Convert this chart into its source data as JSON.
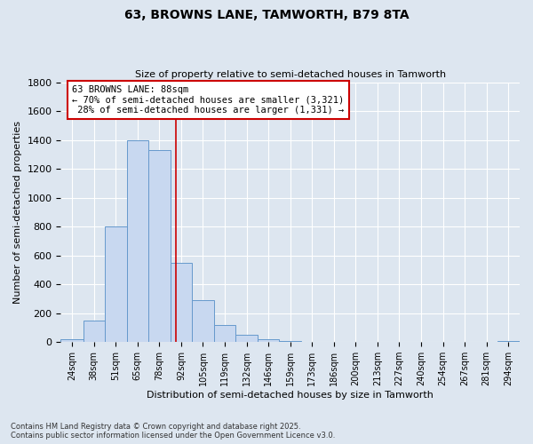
{
  "title": "63, BROWNS LANE, TAMWORTH, B79 8TA",
  "subtitle": "Size of property relative to semi-detached houses in Tamworth",
  "xlabel": "Distribution of semi-detached houses by size in Tamworth",
  "ylabel": "Number of semi-detached properties",
  "bin_labels": [
    "24sqm",
    "38sqm",
    "51sqm",
    "65sqm",
    "78sqm",
    "92sqm",
    "105sqm",
    "119sqm",
    "132sqm",
    "146sqm",
    "159sqm",
    "173sqm",
    "186sqm",
    "200sqm",
    "213sqm",
    "227sqm",
    "240sqm",
    "254sqm",
    "267sqm",
    "281sqm",
    "294sqm"
  ],
  "bar_values": [
    20,
    150,
    800,
    1400,
    1330,
    550,
    290,
    120,
    50,
    20,
    5,
    2,
    2,
    2,
    2,
    2,
    2,
    2,
    2,
    2,
    8
  ],
  "bin_edges_sqm": [
    17,
    31,
    44,
    58,
    71,
    85,
    98,
    112,
    125,
    139,
    152,
    166,
    179,
    193,
    206,
    220,
    233,
    247,
    260,
    274,
    287,
    301
  ],
  "bar_color": "#c8d8f0",
  "bar_edge_color": "#6699cc",
  "bg_color": "#dde6f0",
  "grid_color": "#ffffff",
  "vline_x": 88,
  "vline_color": "#cc0000",
  "annotation_text": "63 BROWNS LANE: 88sqm\n← 70% of semi-detached houses are smaller (3,321)\n 28% of semi-detached houses are larger (1,331) →",
  "annotation_box_color": "white",
  "annotation_box_edge": "#cc0000",
  "ylim": [
    0,
    1800
  ],
  "yticks": [
    0,
    200,
    400,
    600,
    800,
    1000,
    1200,
    1400,
    1600,
    1800
  ],
  "footnote1": "Contains HM Land Registry data © Crown copyright and database right 2025.",
  "footnote2": "Contains public sector information licensed under the Open Government Licence v3.0."
}
